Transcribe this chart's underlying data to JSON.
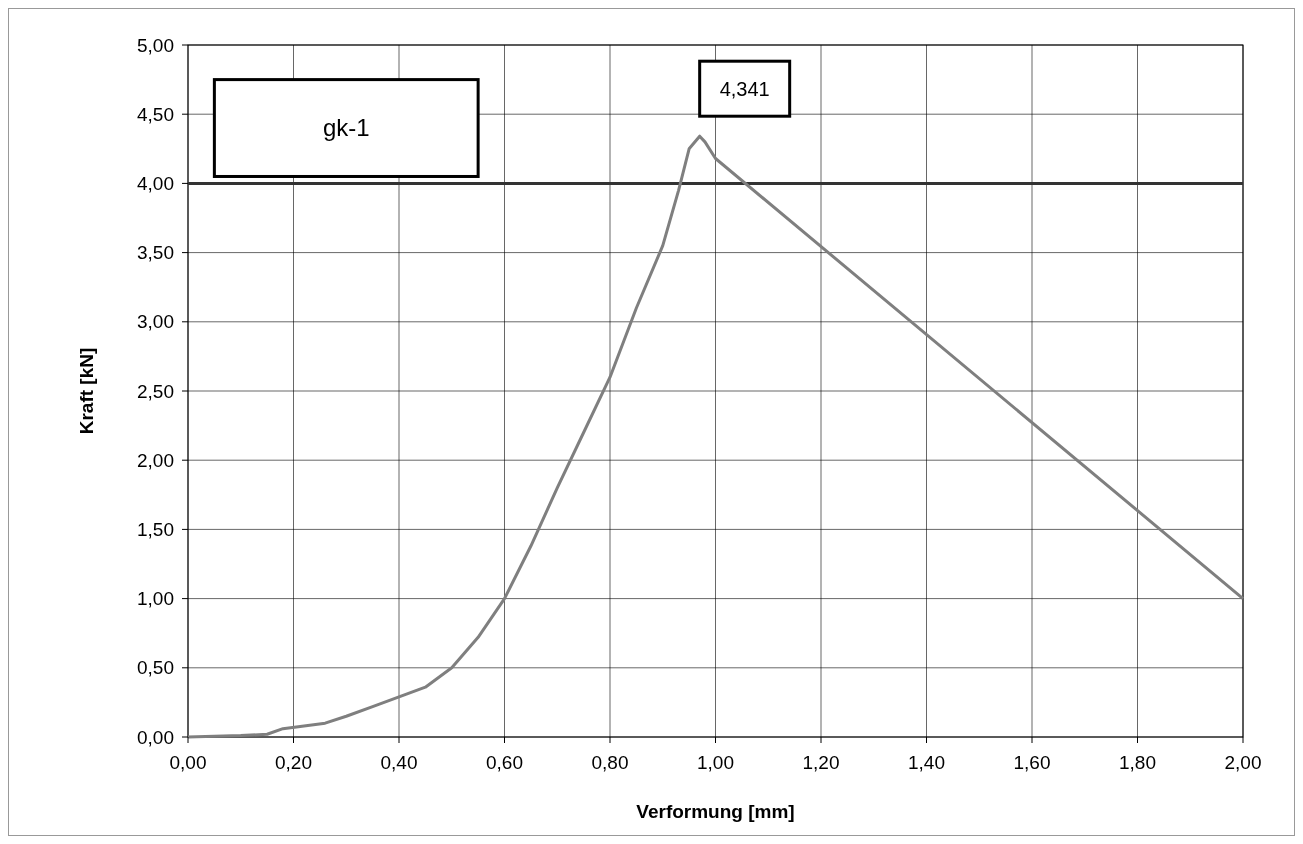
{
  "chart_data": {
    "type": "line",
    "xlabel": "Verformung [mm]",
    "ylabel": "Kraft [kN]",
    "x": [
      0,
      0.1,
      0.15,
      0.18,
      0.22,
      0.26,
      0.3,
      0.35,
      0.4,
      0.45,
      0.5,
      0.55,
      0.6,
      0.65,
      0.7,
      0.75,
      0.8,
      0.85,
      0.9,
      0.93,
      0.95,
      0.97,
      0.98,
      1.0,
      2.0
    ],
    "series": [
      {
        "color": "#7f7f7f",
        "values": [
          0,
          0.01,
          0.02,
          0.06,
          0.08,
          0.1,
          0.15,
          0.22,
          0.29,
          0.36,
          0.5,
          0.72,
          1.0,
          1.38,
          1.8,
          2.2,
          2.6,
          3.1,
          3.55,
          3.95,
          4.25,
          4.341,
          4.3,
          4.18,
          1.0
        ]
      }
    ],
    "xlim": [
      0,
      2
    ],
    "ylim": [
      0,
      5
    ],
    "xticks": [
      {
        "value": 0,
        "label": "0,00"
      },
      {
        "value": 0.2,
        "label": "0,20"
      },
      {
        "value": 0.4,
        "label": "0,40"
      },
      {
        "value": 0.6,
        "label": "0,60"
      },
      {
        "value": 0.8,
        "label": "0,80"
      },
      {
        "value": 1,
        "label": "1,00"
      },
      {
        "value": 1.2,
        "label": "1,20"
      },
      {
        "value": 1.4,
        "label": "1,40"
      },
      {
        "value": 1.6,
        "label": "1,60"
      },
      {
        "value": 1.8,
        "label": "1,80"
      },
      {
        "value": 2,
        "label": "2,00"
      }
    ],
    "yticks": [
      {
        "value": 0,
        "label": "0,00"
      },
      {
        "value": 0.5,
        "label": "0,50"
      },
      {
        "value": 1,
        "label": "1,00"
      },
      {
        "value": 1.5,
        "label": "1,50"
      },
      {
        "value": 2,
        "label": "2,00"
      },
      {
        "value": 2.5,
        "label": "2,50"
      },
      {
        "value": 3,
        "label": "3,00"
      },
      {
        "value": 3.5,
        "label": "3,50"
      },
      {
        "value": 4,
        "label": "4,00"
      },
      {
        "value": 4.5,
        "label": "4,50"
      },
      {
        "value": 5,
        "label": "5,00"
      }
    ],
    "grid": true,
    "marker": "none",
    "line_style": "solid",
    "ref_lines": [
      {
        "axis": "y",
        "value": 4,
        "color": "#333333"
      }
    ],
    "annotations": [
      "gk-1",
      {
        "text": "4,341",
        "x": 0.97,
        "y": 4.341
      }
    ]
  }
}
